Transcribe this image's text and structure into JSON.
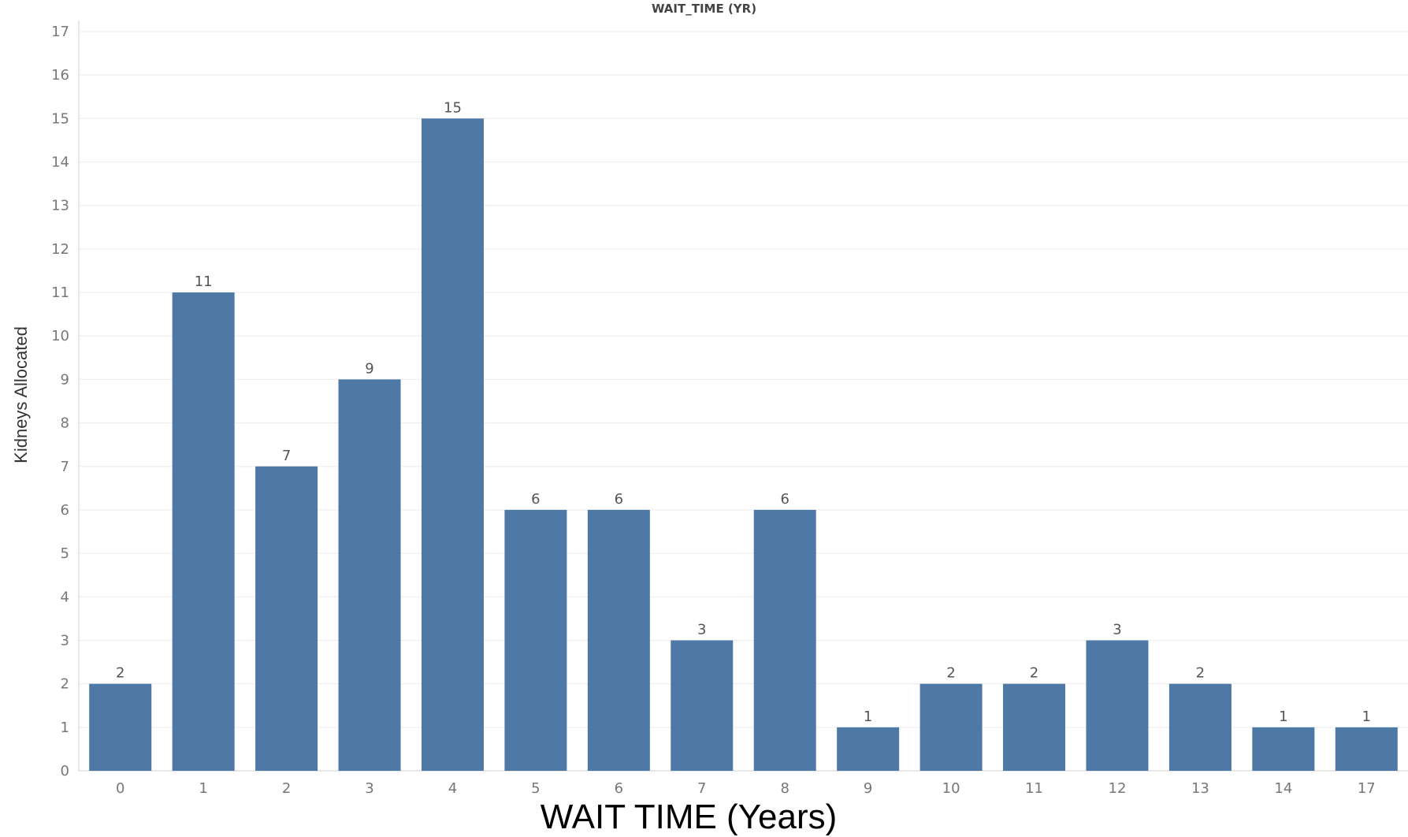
{
  "chart_data": {
    "type": "bar",
    "title": "WAIT_TIME (YR)",
    "xlabel": "WAIT TIME (Years)",
    "ylabel": "Kidneys Allocated",
    "categories": [
      "0",
      "1",
      "2",
      "3",
      "4",
      "5",
      "6",
      "7",
      "8",
      "9",
      "10",
      "11",
      "12",
      "13",
      "14",
      "17"
    ],
    "values": [
      2,
      11,
      7,
      9,
      15,
      6,
      6,
      3,
      6,
      1,
      2,
      2,
      3,
      2,
      1,
      1
    ],
    "ylim": [
      0,
      17
    ],
    "yticks": [
      0,
      1,
      2,
      3,
      4,
      5,
      6,
      7,
      8,
      9,
      10,
      11,
      12,
      13,
      14,
      15,
      16,
      17
    ],
    "grid": true,
    "data_labels": true,
    "colors": {
      "bar": "#4e79a7",
      "grid": "#ececec",
      "axis": "#d0d0d0"
    }
  }
}
